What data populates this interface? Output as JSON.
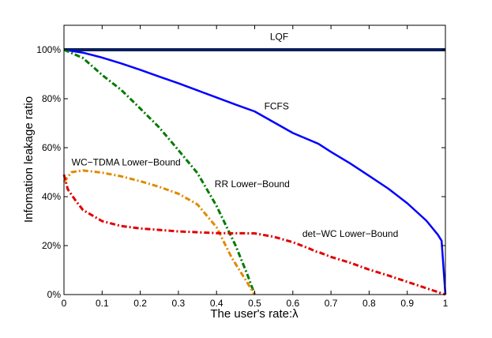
{
  "chart_data": {
    "type": "line",
    "title": "",
    "xlabel": "The user's rate:",
    "xlabel_symbol": "λ",
    "ylabel": "Infomation leakage ratio",
    "xlim": [
      0,
      1
    ],
    "ylim": [
      0,
      110
    ],
    "x_ticks": [
      0,
      0.1,
      0.2,
      0.3,
      0.4,
      0.5,
      0.6,
      0.7,
      0.8,
      0.9,
      1
    ],
    "x_tick_labels": [
      "0",
      "0.1",
      "0.2",
      "0.3",
      "0.4",
      "0.5",
      "0.6",
      "0.7",
      "0.8",
      "0.9",
      "1"
    ],
    "y_ticks": [
      0,
      20,
      40,
      60,
      80,
      100
    ],
    "y_tick_labels": [
      "0%",
      "20%",
      "40%",
      "60%",
      "80%",
      "100%"
    ],
    "grid": false,
    "legend": "none",
    "series": [
      {
        "name": "LQF",
        "color": "#0a1f5c",
        "style": "solid-thick",
        "x": [
          0,
          1
        ],
        "y": [
          100,
          100
        ]
      },
      {
        "name": "FCFS",
        "color": "#0000ff",
        "style": "solid",
        "x": [
          0,
          0.05,
          0.1,
          0.15,
          0.2,
          0.25,
          0.3,
          0.35,
          0.4,
          0.45,
          0.5,
          0.55,
          0.6,
          0.667,
          0.7,
          0.75,
          0.8,
          0.85,
          0.9,
          0.95,
          0.98,
          0.99,
          1.0
        ],
        "y": [
          100,
          98.8,
          96.8,
          94.4,
          91.8,
          89,
          86.3,
          83.4,
          80.5,
          77.6,
          74.8,
          70.4,
          66,
          61.6,
          58.3,
          53.6,
          48.5,
          43.3,
          37.3,
          30.2,
          24.5,
          22,
          0
        ]
      },
      {
        "name": "RR Lower-Bound",
        "color": "#007a00",
        "style": "dash-dot",
        "x": [
          0,
          0.05,
          0.1,
          0.15,
          0.2,
          0.25,
          0.3,
          0.35,
          0.4,
          0.45,
          0.48,
          0.5
        ],
        "y": [
          100,
          96.6,
          89.7,
          83.6,
          76,
          68.2,
          59,
          49.6,
          36.2,
          20,
          8.5,
          0
        ]
      },
      {
        "name": "WC-TDMA Lower-Bound",
        "color": "#e08a00",
        "style": "dash-dot",
        "x": [
          0,
          0.02,
          0.05,
          0.1,
          0.15,
          0.2,
          0.25,
          0.3,
          0.35,
          0.4,
          0.44,
          0.47,
          0.5
        ],
        "y": [
          46,
          50,
          50.7,
          49.8,
          48.3,
          46.3,
          44,
          41.2,
          36.8,
          27.5,
          15,
          7.5,
          0
        ]
      },
      {
        "name": "det-WC Lower-Bound",
        "color": "#e00000",
        "style": "dash-dot",
        "x": [
          0,
          0.01,
          0.03,
          0.05,
          0.1,
          0.15,
          0.2,
          0.3,
          0.4,
          0.5,
          0.55,
          0.6,
          0.64,
          0.66,
          0.67,
          0.7,
          0.75,
          0.8,
          0.85,
          0.9,
          0.95,
          1.0
        ],
        "y": [
          49,
          43,
          38.5,
          34.5,
          30,
          28,
          27,
          25.8,
          25.1,
          25,
          23.6,
          21.4,
          19,
          17.6,
          17.2,
          15.4,
          13,
          10.2,
          7.8,
          5.2,
          2.6,
          0
        ]
      }
    ],
    "annotations": [
      {
        "text": "LQF",
        "x": 0.54,
        "y": 104
      },
      {
        "text": "FCFS",
        "x": 0.525,
        "y": 75.6
      },
      {
        "text": "WC−TDMA Lower−Bound",
        "x": 0.02,
        "y": 52.8
      },
      {
        "text": "RR Lower−Bound",
        "x": 0.395,
        "y": 43.8
      },
      {
        "text": "det−WC Lower−Bound",
        "x": 0.625,
        "y": 23.5
      }
    ]
  }
}
